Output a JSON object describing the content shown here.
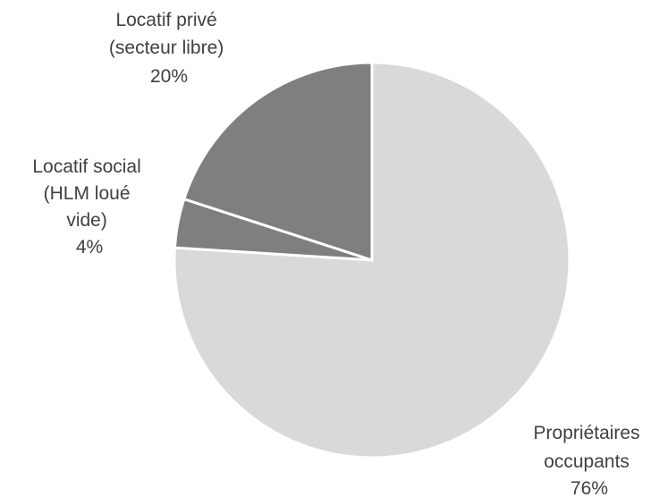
{
  "chart_data": {
    "type": "pie",
    "title": "",
    "start_angle_deg": 0,
    "direction": "clockwise",
    "slices": [
      {
        "label_lines": [
          "Propriétaires",
          "occupants"
        ],
        "value": 76,
        "value_label": "76%",
        "color": "#d9d9d9"
      },
      {
        "label_lines": [
          "Locatif social",
          "(HLM loué",
          "vide)"
        ],
        "value": 4,
        "value_label": "4%",
        "color": "#7f7f7f"
      },
      {
        "label_lines": [
          "Locatif privé",
          "(secteur libre)"
        ],
        "value": 20,
        "value_label": "20%",
        "color": "#7f7f7f"
      }
    ],
    "legend": "none"
  }
}
